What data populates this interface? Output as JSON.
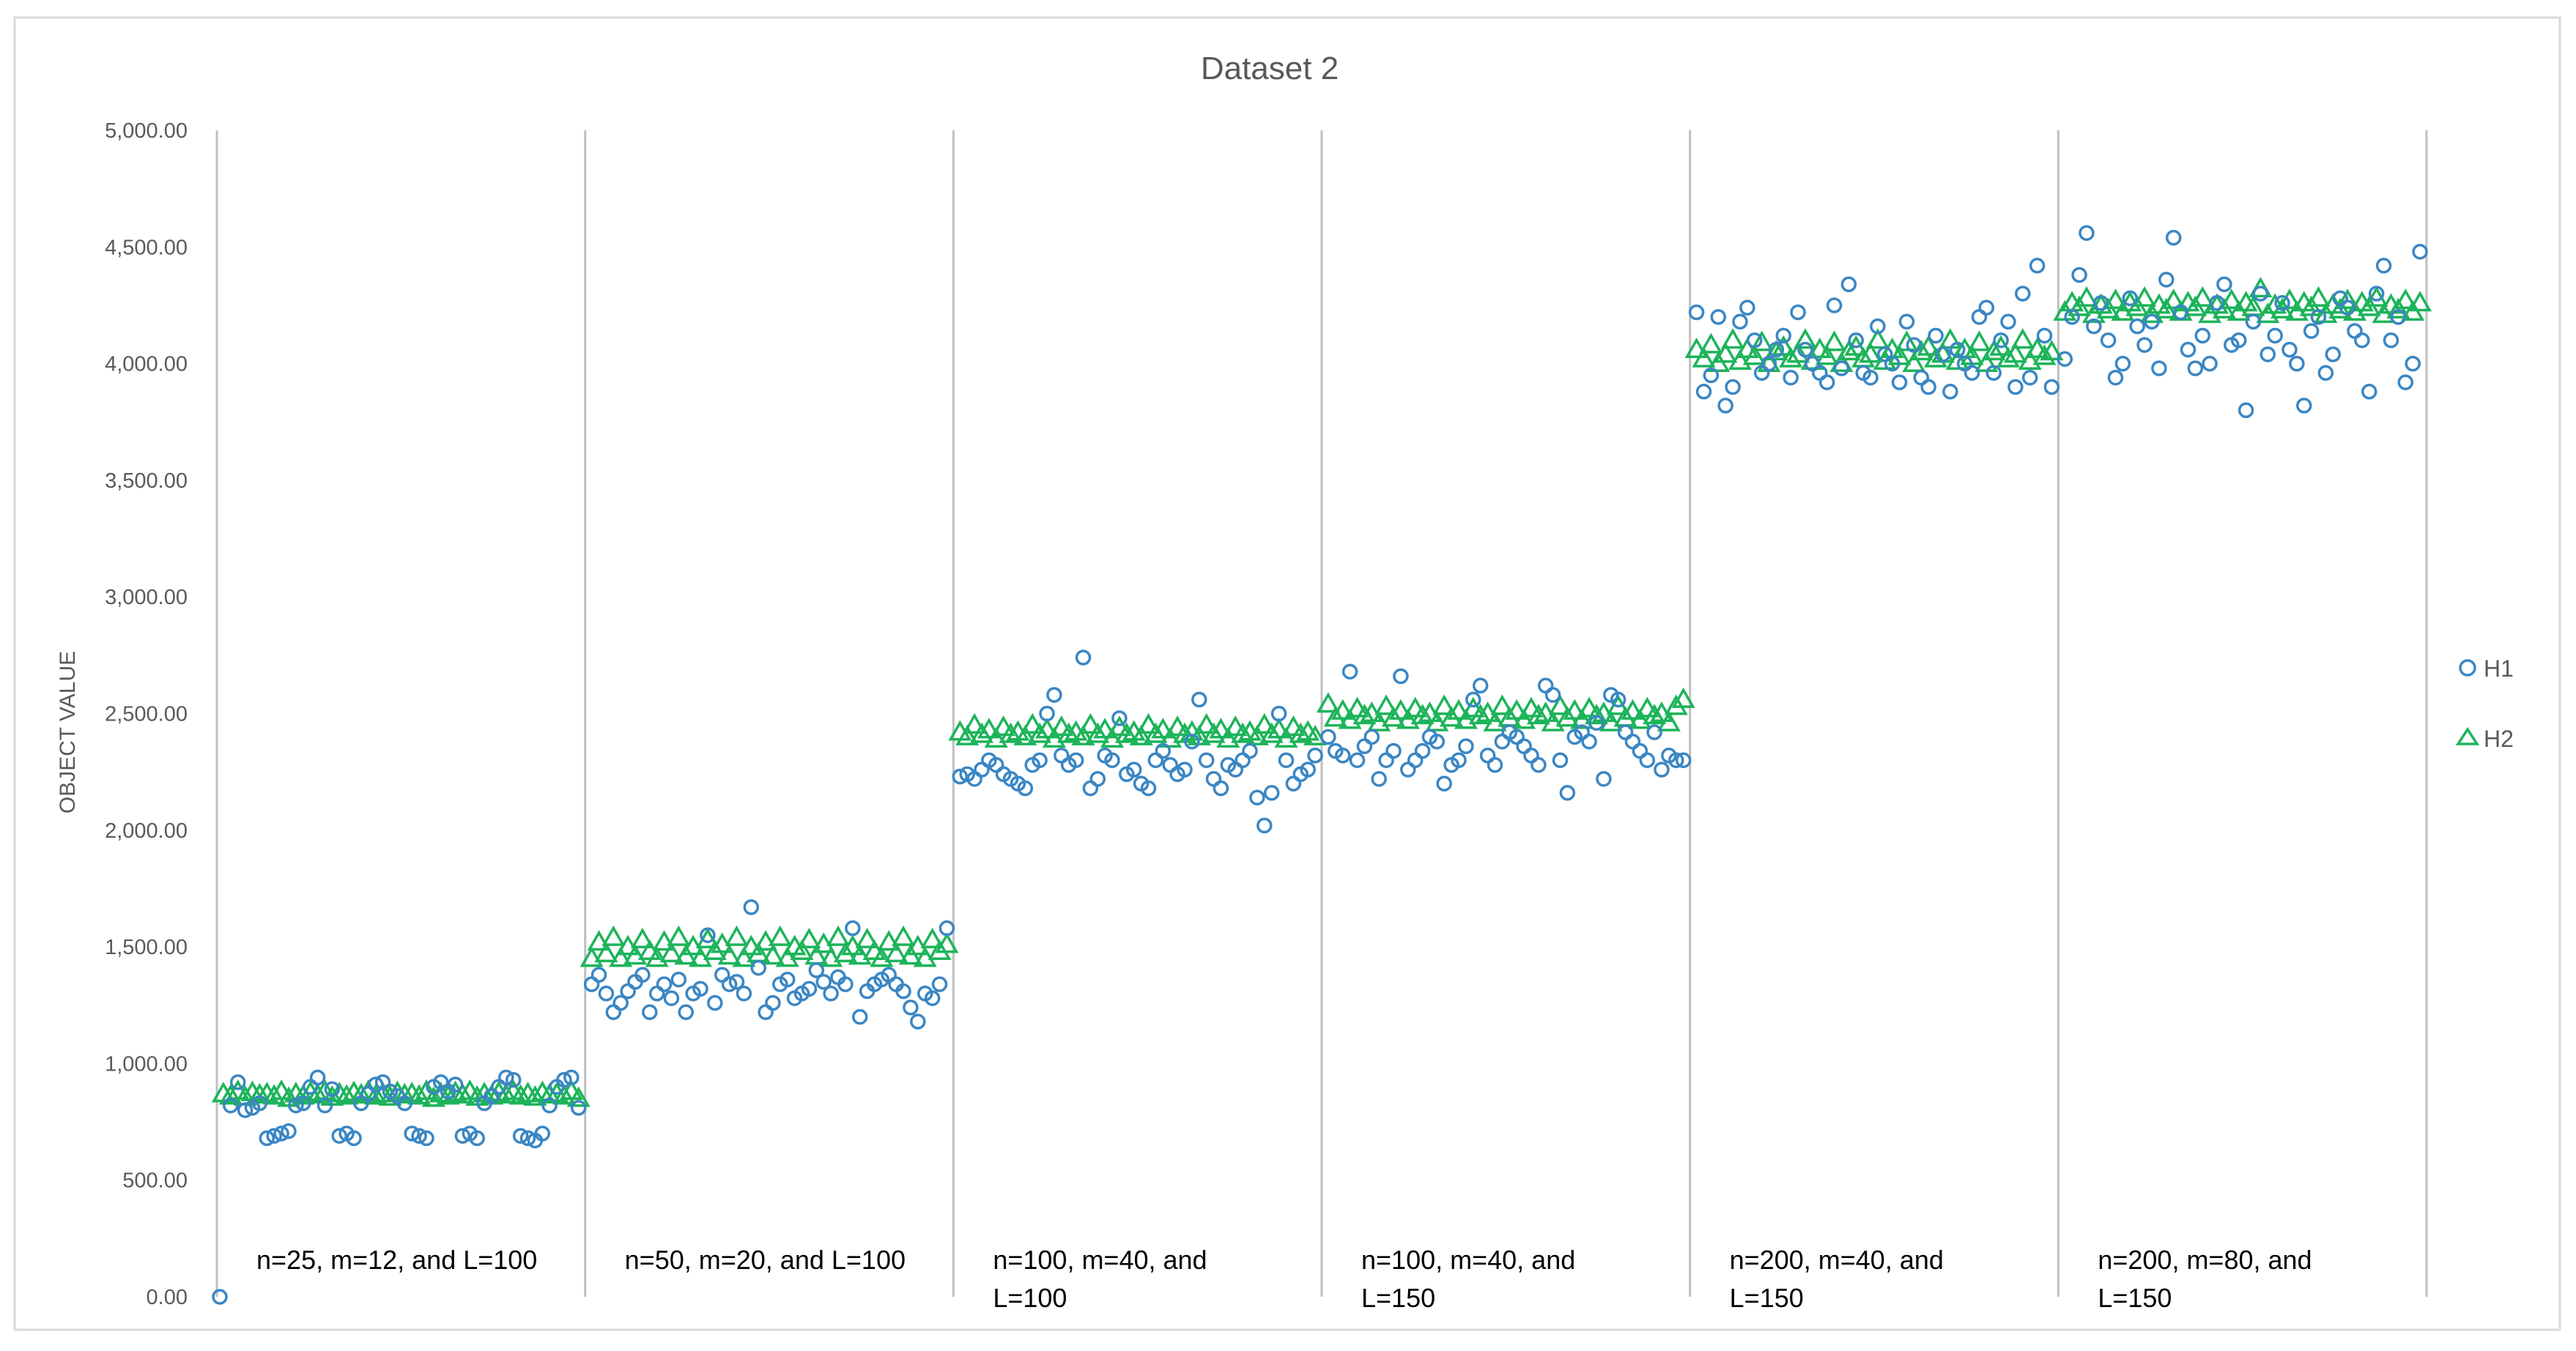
{
  "chart_data": {
    "type": "scatter",
    "title": "Dataset 2",
    "xlabel": "",
    "ylabel": "OBJECT VALUE",
    "ylim": [
      0,
      5000
    ],
    "y_ticks": [
      0,
      500,
      1000,
      1500,
      2000,
      2500,
      3000,
      3500,
      4000,
      4500,
      5000
    ],
    "y_tick_labels": [
      "0.00",
      "500.00",
      "1,000.00",
      "1,500.00",
      "2,000.00",
      "2,500.00",
      "3,000.00",
      "3,500.00",
      "4,000.00",
      "4,500.00",
      "5,000.00"
    ],
    "gridlines": false,
    "legend_position": "right",
    "points_per_group": 50,
    "colors": {
      "H1": "#3a86c4",
      "H2": "#1db45a",
      "axis": "#bfbfbf",
      "text": "#595959"
    },
    "categories": [
      [
        "n=25, m=12, and L=100"
      ],
      [
        "n=50, m=20, and L=100"
      ],
      [
        "n=100, m=40, and",
        "L=100"
      ],
      [
        "n=100, m=40, and",
        "L=150"
      ],
      [
        "n=200, m=40, and",
        "L=150"
      ],
      [
        "n=200, m=80, and",
        "L=150"
      ]
    ],
    "series": [
      {
        "name": "H1",
        "marker": "circle",
        "groups": [
          [
            0,
            820,
            920,
            800,
            810,
            830,
            680,
            690,
            700,
            710,
            820,
            830,
            900,
            940,
            820,
            890,
            690,
            700,
            680,
            830,
            870,
            910,
            920,
            880,
            860,
            830,
            700,
            690,
            680,
            900,
            920,
            880,
            910,
            690,
            700,
            680,
            830,
            860,
            900,
            940,
            930,
            690,
            680,
            670,
            700,
            820,
            900,
            930,
            940,
            810
          ],
          [
            1340,
            1380,
            1300,
            1220,
            1260,
            1310,
            1350,
            1380,
            1220,
            1300,
            1340,
            1280,
            1360,
            1220,
            1300,
            1320,
            1550,
            1260,
            1380,
            1340,
            1350,
            1300,
            1670,
            1410,
            1220,
            1260,
            1340,
            1360,
            1280,
            1300,
            1320,
            1400,
            1350,
            1300,
            1370,
            1340,
            1580,
            1200,
            1310,
            1340,
            1360,
            1380,
            1340,
            1310,
            1240,
            1180,
            1300,
            1280,
            1340,
            1580
          ],
          [
            2230,
            2240,
            2220,
            2260,
            2300,
            2280,
            2240,
            2220,
            2200,
            2180,
            2280,
            2300,
            2500,
            2580,
            2320,
            2280,
            2300,
            2740,
            2180,
            2220,
            2320,
            2300,
            2480,
            2240,
            2260,
            2200,
            2180,
            2300,
            2340,
            2280,
            2240,
            2260,
            2380,
            2560,
            2300,
            2220,
            2180,
            2280,
            2260,
            2300,
            2340,
            2140,
            2020,
            2160,
            2500,
            2300,
            2200,
            2240,
            2260,
            2320
          ],
          [
            2400,
            2340,
            2320,
            2680,
            2300,
            2360,
            2400,
            2220,
            2300,
            2340,
            2660,
            2260,
            2300,
            2340,
            2400,
            2380,
            2200,
            2280,
            2300,
            2360,
            2560,
            2620,
            2320,
            2280,
            2380,
            2420,
            2400,
            2360,
            2320,
            2280,
            2620,
            2580,
            2300,
            2160,
            2400,
            2420,
            2380,
            2460,
            2220,
            2580,
            2560,
            2420,
            2380,
            2340,
            2300,
            2420,
            2260,
            2320,
            2300,
            2300
          ],
          [
            4220,
            3880,
            3950,
            4200,
            3820,
            3900,
            4180,
            4240,
            4100,
            3960,
            4000,
            4060,
            4120,
            3940,
            4220,
            4060,
            4000,
            3960,
            3920,
            4250,
            3980,
            4340,
            4100,
            3960,
            3940,
            4160,
            4040,
            4000,
            3920,
            4180,
            4080,
            3940,
            3900,
            4120,
            4040,
            3880,
            4060,
            4000,
            3960,
            4200,
            4240,
            3960,
            4100,
            4180,
            3900,
            4300,
            3940,
            4420,
            4120,
            3900
          ],
          [
            4020,
            4200,
            4380,
            4560,
            4160,
            4260,
            4100,
            3940,
            4000,
            4280,
            4160,
            4080,
            4180,
            3980,
            4360,
            4540,
            4220,
            4060,
            3980,
            4120,
            4000,
            4260,
            4340,
            4080,
            4100,
            3800,
            4180,
            4300,
            4040,
            4120,
            4260,
            4060,
            4000,
            3820,
            4140,
            4200,
            3960,
            4040,
            4280,
            4240,
            4140,
            4100,
            3880,
            4300,
            4420,
            4100,
            4200,
            3920,
            4000,
            4480
          ]
        ]
      },
      {
        "name": "H2",
        "marker": "triangle",
        "groups": [
          [
            870,
            860,
            880,
            855,
            875,
            865,
            870,
            860,
            880,
            850,
            870,
            860,
            875,
            865,
            880,
            855,
            870,
            860,
            875,
            865,
            880,
            860,
            870,
            855,
            875,
            865,
            870,
            860,
            880,
            850,
            870,
            860,
            875,
            865,
            880,
            855,
            870,
            860,
            875,
            865,
            880,
            860,
            870,
            855,
            875,
            865,
            870,
            860,
            880,
            850
          ],
          [
            1450,
            1520,
            1470,
            1540,
            1450,
            1500,
            1460,
            1530,
            1480,
            1450,
            1520,
            1470,
            1540,
            1460,
            1500,
            1450,
            1530,
            1480,
            1510,
            1460,
            1540,
            1450,
            1500,
            1470,
            1520,
            1460,
            1540,
            1450,
            1500,
            1480,
            1530,
            1460,
            1510,
            1450,
            1540,
            1470,
            1500,
            1460,
            1530,
            1480,
            1450,
            1520,
            1470,
            1540,
            1460,
            1500,
            1450,
            1530,
            1480,
            1510
          ],
          [
            2420,
            2400,
            2450,
            2410,
            2430,
            2390,
            2440,
            2410,
            2420,
            2400,
            2450,
            2410,
            2430,
            2390,
            2440,
            2410,
            2420,
            2400,
            2450,
            2410,
            2430,
            2390,
            2440,
            2410,
            2420,
            2400,
            2450,
            2410,
            2430,
            2390,
            2440,
            2410,
            2420,
            2400,
            2450,
            2410,
            2430,
            2390,
            2440,
            2410,
            2420,
            2400,
            2450,
            2410,
            2430,
            2390,
            2440,
            2410,
            2420,
            2400
          ],
          [
            2540,
            2480,
            2510,
            2470,
            2520,
            2490,
            2500,
            2460,
            2530,
            2480,
            2510,
            2470,
            2520,
            2490,
            2500,
            2460,
            2530,
            2480,
            2510,
            2470,
            2520,
            2490,
            2500,
            2460,
            2530,
            2480,
            2510,
            2470,
            2520,
            2490,
            2500,
            2460,
            2530,
            2480,
            2510,
            2470,
            2520,
            2490,
            2500,
            2460,
            2530,
            2480,
            2510,
            2470,
            2520,
            2490,
            2500,
            2460,
            2530,
            2560
          ],
          [
            4060,
            4020,
            4080,
            4000,
            4040,
            4100,
            4010,
            4060,
            4030,
            4090,
            4000,
            4050,
            4070,
            4020,
            4040,
            4100,
            4010,
            4060,
            4030,
            4090,
            4000,
            4050,
            4070,
            4020,
            4040,
            4100,
            4010,
            4060,
            4030,
            4090,
            4000,
            4050,
            4070,
            4020,
            4040,
            4100,
            4010,
            4060,
            4030,
            4090,
            4000,
            4050,
            4070,
            4020,
            4040,
            4100,
            4010,
            4060,
            4030,
            4050
          ],
          [
            4220,
            4260,
            4240,
            4280,
            4210,
            4250,
            4230,
            4270,
            4220,
            4260,
            4240,
            4280,
            4210,
            4250,
            4230,
            4270,
            4220,
            4260,
            4240,
            4280,
            4210,
            4250,
            4230,
            4270,
            4220,
            4260,
            4240,
            4320,
            4210,
            4250,
            4230,
            4270,
            4220,
            4260,
            4240,
            4280,
            4210,
            4250,
            4230,
            4270,
            4220,
            4260,
            4240,
            4280,
            4210,
            4250,
            4230,
            4270,
            4220,
            4260
          ]
        ]
      }
    ]
  }
}
